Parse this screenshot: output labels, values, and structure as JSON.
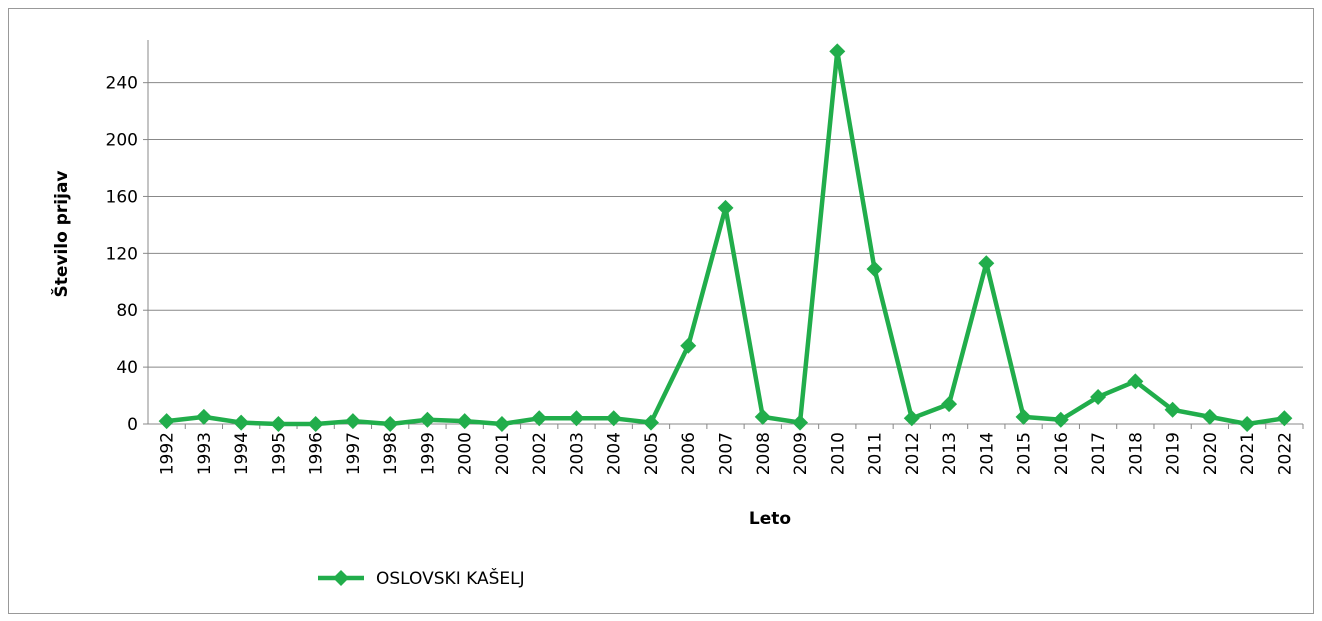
{
  "chart_data": {
    "type": "line",
    "x_label": "Leto",
    "y_label": "Število prijav",
    "categories": [
      "1992",
      "1993",
      "1994",
      "1995",
      "1996",
      "1997",
      "1998",
      "1999",
      "2000",
      "2001",
      "2002",
      "2003",
      "2004",
      "2005",
      "2006",
      "2007",
      "2008",
      "2009",
      "2010",
      "2011",
      "2012",
      "2013",
      "2014",
      "2015",
      "2016",
      "2017",
      "2018",
      "2019",
      "2020",
      "2021",
      "2022"
    ],
    "series": [
      {
        "name": "OSLOVSKI KAŠELJ",
        "color": "#21ad4b",
        "values": [
          2,
          5,
          1,
          0,
          0,
          2,
          0,
          3,
          2,
          0,
          4,
          4,
          4,
          1,
          55,
          152,
          5,
          1,
          262,
          109,
          4,
          14,
          113,
          5,
          3,
          19,
          30,
          10,
          5,
          0,
          4
        ]
      }
    ],
    "ylim": [
      0,
      270
    ],
    "yticks": [
      0,
      40,
      80,
      120,
      160,
      200,
      240
    ],
    "grid": true,
    "legend": "bottom"
  }
}
